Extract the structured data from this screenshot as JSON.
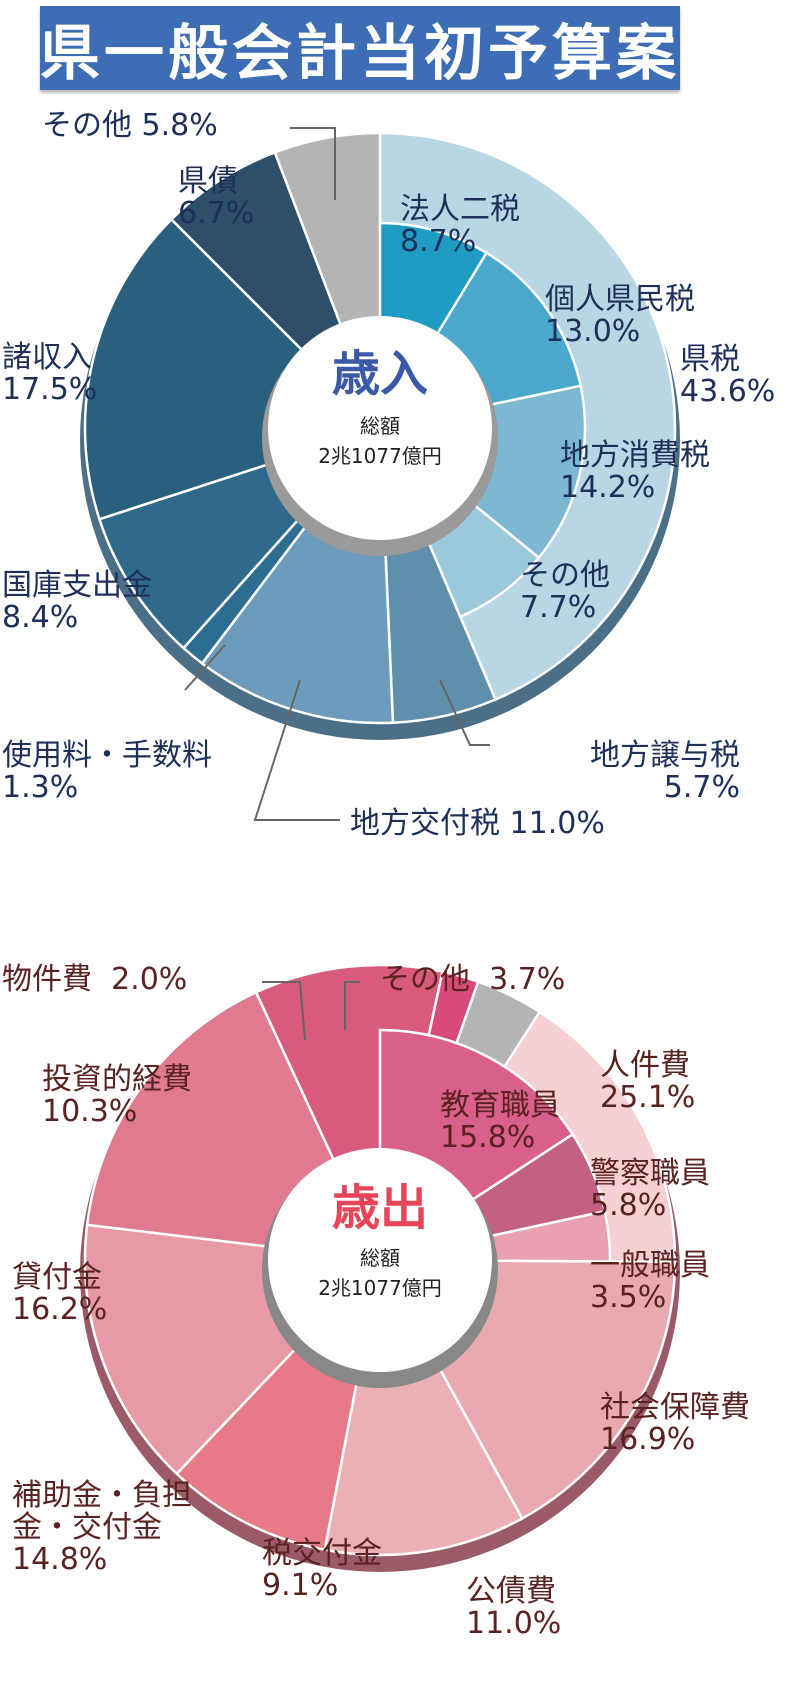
{
  "header": {
    "title": "県一般会計当初予算案"
  },
  "colors": {
    "title_bg": "#3d6db5",
    "income_text": "#1e2f5a",
    "expense_text": "#5a2220",
    "income_center": "#3a5aa8",
    "expense_center": "#e8455a"
  },
  "income": {
    "center_title": "歳入",
    "total_label": "総額",
    "total_value": "2兆1077億円",
    "labels": [
      {
        "name": "その他",
        "value": "5.8%"
      },
      {
        "name": "県債",
        "value": "6.7%"
      },
      {
        "name": "法人二税",
        "value": "8.7%"
      },
      {
        "name": "個人県民税",
        "value": "13.0%"
      },
      {
        "name": "県税",
        "value": "43.6%"
      },
      {
        "name": "地方消費税",
        "value": "14.2%"
      },
      {
        "name": "その他",
        "value": "7.7%"
      },
      {
        "name": "諸収入",
        "value": "17.5%"
      },
      {
        "name": "国庫支出金",
        "value": "8.4%"
      },
      {
        "name": "使用料・手数料",
        "value": "1.3%"
      },
      {
        "name": "地方譲与税",
        "value": "5.7%"
      },
      {
        "name": "地方交付税",
        "value": "11.0%"
      }
    ]
  },
  "expense": {
    "center_title": "歳出",
    "total_label": "総額",
    "total_value": "2兆1077億円",
    "labels": [
      {
        "name": "物件費",
        "value": "2.0%"
      },
      {
        "name": "その他",
        "value": "3.7%"
      },
      {
        "name": "人件費",
        "value": "25.1%"
      },
      {
        "name": "教育職員",
        "value": "15.8%"
      },
      {
        "name": "投資的経費",
        "value": "10.3%"
      },
      {
        "name": "警察職員",
        "value": "5.8%"
      },
      {
        "name": "一般職員",
        "value": "3.5%"
      },
      {
        "name": "貸付金",
        "value": "16.2%"
      },
      {
        "name": "社会保障費",
        "value": "16.9%"
      },
      {
        "name": "補助金・負担金・交付金",
        "value": "14.8%"
      },
      {
        "name": "税交付金",
        "value": "9.1%"
      },
      {
        "name": "公債費",
        "value": "11.0%"
      }
    ]
  },
  "chart_data": [
    {
      "type": "pie",
      "title": "歳入 総額2兆1077億円",
      "categories": [
        "県税",
        "地方譲与税",
        "地方交付税",
        "使用料・手数料",
        "国庫支出金",
        "諸収入",
        "県債",
        "その他"
      ],
      "values": [
        43.6,
        5.7,
        11.0,
        1.3,
        8.4,
        17.5,
        6.7,
        5.8
      ],
      "sub_breakdown": {
        "parent": "県税",
        "categories": [
          "法人二税",
          "個人県民税",
          "地方消費税",
          "その他"
        ],
        "values": [
          8.7,
          13.0,
          14.2,
          7.7
        ]
      },
      "unit": "%"
    },
    {
      "type": "pie",
      "title": "歳出 総額2兆1077億円",
      "categories": [
        "人件費",
        "社会保障費",
        "公債費",
        "税交付金",
        "補助金・負担金・交付金",
        "貸付金",
        "投資的経費",
        "物件費",
        "その他"
      ],
      "values": [
        25.1,
        16.9,
        11.0,
        9.1,
        14.8,
        16.2,
        10.3,
        2.0,
        3.7
      ],
      "sub_breakdown": {
        "parent": "人件費",
        "categories": [
          "教育職員",
          "警察職員",
          "一般職員"
        ],
        "values": [
          15.8,
          5.8,
          3.5
        ]
      },
      "unit": "%"
    }
  ]
}
